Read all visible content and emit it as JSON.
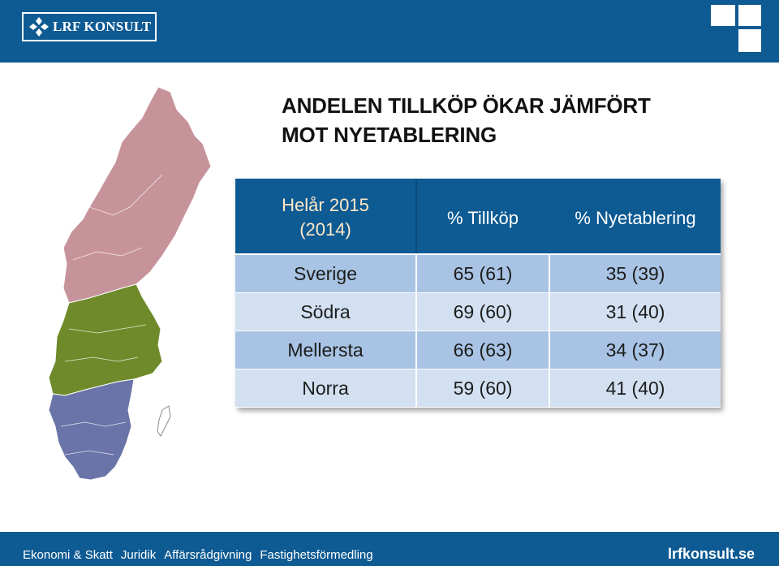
{
  "header": {
    "logo_text": "LRF KONSULT"
  },
  "title": {
    "line1": "ANDELEN TILLKÖP ÖKAR JÄMFÖRT",
    "line2": "MOT NYETABLERING"
  },
  "map": {
    "regions": [
      {
        "name": "Norra",
        "color": "#c7939a"
      },
      {
        "name": "Mellersta",
        "color": "#6f8a2a"
      },
      {
        "name": "Södra",
        "color": "#6a74a8"
      }
    ]
  },
  "table": {
    "header": {
      "period_line1": "Helår 2015",
      "period_line2": "(2014)",
      "col1": "% Tillköp",
      "col2": "% Nyetablering"
    },
    "rows": [
      {
        "region": "Sverige",
        "tillkop": "65 (61)",
        "nyetablering": "35 (39)"
      },
      {
        "region": "Södra",
        "tillkop": "69 (60)",
        "nyetablering": "31  (40)"
      },
      {
        "region": "Mellersta",
        "tillkop": "66 (63)",
        "nyetablering": "34  (37)"
      },
      {
        "region": "Norra",
        "tillkop": "59 (60)",
        "nyetablering": "41  (40)"
      }
    ]
  },
  "footer": {
    "links": [
      "Ekonomi & Skatt",
      "Juridik",
      "Affärsrådgivning",
      "Fastighetsförmedling"
    ],
    "site": "lrfkonsult.se"
  },
  "colors": {
    "brand_blue": "#0e5a93",
    "row_dark": "#a8c3e3",
    "row_light": "#d2e0f1"
  }
}
